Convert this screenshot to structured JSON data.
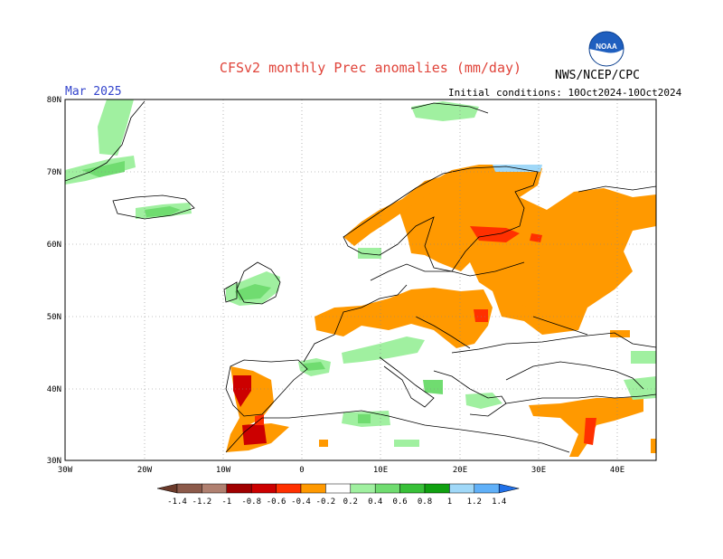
{
  "title": "CFSv2 monthly Prec anomalies (mm/day)",
  "agency": "NWS/NCEP/CPC",
  "logo_text": "NOAA",
  "month": "Mar 2025",
  "initial_conditions": "Initial conditions: 10Oct2024-10Oct2024",
  "lat_labels": [
    "80N",
    "70N",
    "60N",
    "50N",
    "40N",
    "30N"
  ],
  "lon_labels": [
    "30W",
    "20W",
    "10W",
    "0",
    "10E",
    "20E",
    "30E",
    "40E"
  ],
  "colorbar": {
    "labels": [
      "-1.4",
      "-1.2",
      "-1",
      "-0.8",
      "-0.6",
      "-0.4",
      "-0.2",
      "0.2",
      "0.4",
      "0.6",
      "0.8",
      "1",
      "1.2",
      "1.4"
    ],
    "colors": [
      "#6b3a2a",
      "#8c5a4a",
      "#b08070",
      "#a00000",
      "#cc0000",
      "#ff3000",
      "#ff9900",
      "#ffffff",
      "#a0f0a0",
      "#70dc70",
      "#38c038",
      "#10a010",
      "#a0d8f8",
      "#60b0f8",
      "#2070e8"
    ]
  },
  "colors": {
    "dry_orange": "#ff9900",
    "dry_red": "#ff3000",
    "dark_red": "#cc0000",
    "wet_light_green": "#a0f0a0",
    "wet_green": "#70dc70",
    "wet_dark_green": "#38c038"
  }
}
